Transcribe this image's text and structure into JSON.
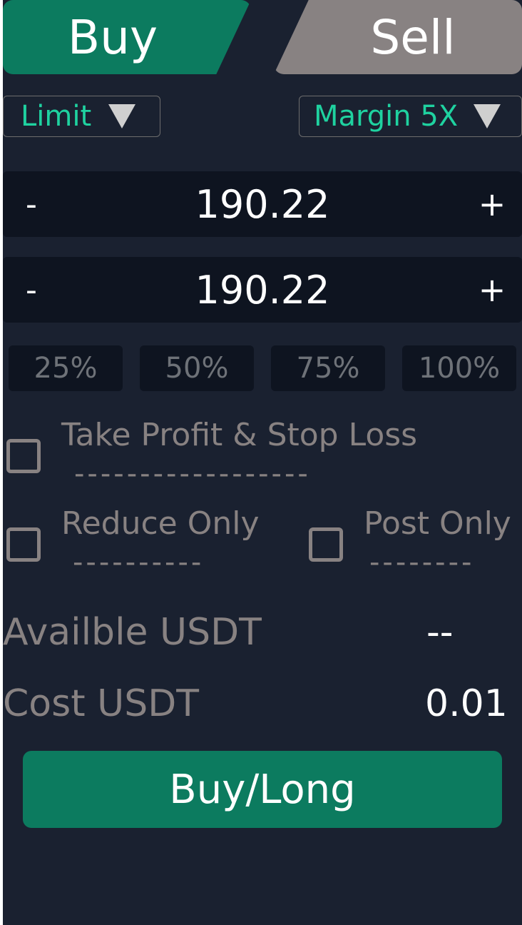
{
  "tabs": {
    "buy": "Buy",
    "sell": "Sell"
  },
  "order_type": {
    "selected": "Limit"
  },
  "margin": {
    "selected": "Margin 5X"
  },
  "price_stepper": {
    "minus": "-",
    "value": "190.22",
    "plus": "+"
  },
  "amount_stepper": {
    "minus": "-",
    "value": "190.22",
    "plus": "+"
  },
  "percent_options": [
    "25%",
    "50%",
    "75%",
    "100%"
  ],
  "options": {
    "tp_sl": {
      "label": "Take Profit & Stop Loss",
      "dashes": "------------------",
      "checked": false
    },
    "reduce_only": {
      "label": "Reduce Only",
      "dashes": "----------",
      "checked": false
    },
    "post_only": {
      "label": "Post Only",
      "dashes": "--------",
      "checked": false
    }
  },
  "info": {
    "available": {
      "label": "Availble USDT",
      "value": "--"
    },
    "cost": {
      "label": "Cost USDT",
      "value": "0.01"
    }
  },
  "action": {
    "label": "Buy/Long"
  },
  "colors": {
    "accent": "#0c7b5f",
    "muted": "#888282",
    "panel": "#1a2130",
    "field": "#0e1420",
    "teal_text": "#1fd2a0"
  },
  "icons": {
    "dropdown": "triangle-down-icon"
  }
}
